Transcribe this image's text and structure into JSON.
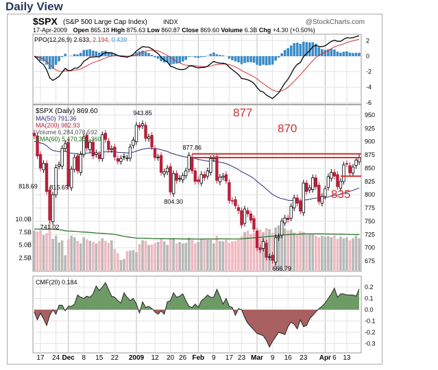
{
  "title": "Daily View",
  "chart_data": {
    "type": "candlestick",
    "symbol": "$SPX",
    "name": "(S&P 500 Large Cap Index)",
    "exchange": "INDX",
    "source": "@StockCharts.com",
    "date": "17-Apr-2009",
    "open_label": "Open",
    "open": "865.18",
    "high_label": "High",
    "high": "875.63",
    "low_label": "Low",
    "low": "860.87",
    "close_label": "Close",
    "close": "869.60",
    "volume_label": "Volume",
    "volume": "6.3B",
    "chg_label": "Chg",
    "chg": "+4.30 (+0.50%)",
    "ppo_legend": "PPO(12,26,9) 2.633,",
    "ppo_signal": "2.194,",
    "ppo_hist": "0.439",
    "price_legend": "$SPX (Daily) 869.60",
    "ma50_legend": "MA(50) 791.36",
    "ma200_legend": "MA(200) 982.93",
    "vol_legend": "Volume 6,284,078,592",
    "ema_legend": "EMA(60) 5,470,351,360",
    "cmf_legend": "CMF(20) 0.184",
    "ppo_ticks": [
      "2",
      "0",
      "-2",
      "-4",
      "-6"
    ],
    "price_ticks": [
      "950",
      "925",
      "900",
      "875",
      "850",
      "825",
      "800",
      "775",
      "750",
      "725",
      "700",
      "675"
    ],
    "volume_ticks": [
      "10.0B",
      "7.5B",
      "5.0B",
      "2.5B"
    ],
    "cmf_ticks": [
      "0.2",
      "0.1",
      "0.0",
      "-0.1",
      "-0.2",
      "-0.3"
    ],
    "x_labels": [
      {
        "t": "17",
        "i": 2,
        "b": 0
      },
      {
        "t": "24",
        "i": 7,
        "b": 0
      },
      {
        "t": "Dec",
        "i": 11,
        "b": 1
      },
      {
        "t": "8",
        "i": 16,
        "b": 0
      },
      {
        "t": "15",
        "i": 21,
        "b": 0
      },
      {
        "t": "22",
        "i": 26,
        "b": 0
      },
      {
        "t": "2009",
        "i": 33,
        "b": 1
      },
      {
        "t": "12",
        "i": 39,
        "b": 0
      },
      {
        "t": "20",
        "i": 44,
        "b": 0
      },
      {
        "t": "26",
        "i": 48,
        "b": 0
      },
      {
        "t": "Feb",
        "i": 53,
        "b": 1
      },
      {
        "t": "9",
        "i": 58,
        "b": 0
      },
      {
        "t": "17",
        "i": 63,
        "b": 0
      },
      {
        "t": "23",
        "i": 67,
        "b": 0
      },
      {
        "t": "Mar",
        "i": 72,
        "b": 1
      },
      {
        "t": "9",
        "i": 77,
        "b": 0
      },
      {
        "t": "16",
        "i": 82,
        "b": 0
      },
      {
        "t": "23",
        "i": 87,
        "b": 0
      },
      {
        "t": "Apr",
        "i": 94,
        "b": 1
      },
      {
        "t": "6",
        "i": 97,
        "b": 0
      },
      {
        "t": "13",
        "i": 101,
        "b": 0
      }
    ],
    "price_annotations": [
      {
        "t": "943.85",
        "i": 35,
        "p": 950
      },
      {
        "t": "877.86",
        "i": 51,
        "p": 885
      },
      {
        "t": "804.30",
        "i": 45,
        "p": 783
      },
      {
        "t": "818.69",
        "i": -2,
        "p": 812
      },
      {
        "t": "815.69",
        "i": 8,
        "p": 810
      },
      {
        "t": "741.02",
        "i": 5,
        "p": 735
      },
      {
        "t": "666.79",
        "i": 80,
        "p": 657
      }
    ],
    "levels": [
      {
        "t": "877",
        "v": 877,
        "from": 51
      },
      {
        "t": "870",
        "v": 870,
        "from": 51
      },
      {
        "t": "835",
        "v": 835,
        "from": 99
      }
    ],
    "closes": [
      911,
      873,
      850,
      859,
      806,
      752,
      800,
      851,
      857,
      887,
      896,
      816,
      848,
      870,
      845,
      876,
      909,
      888,
      899,
      873,
      879,
      868,
      913,
      904,
      885,
      887,
      871,
      863,
      868,
      872,
      869,
      890,
      903,
      931,
      927,
      934,
      906,
      909,
      890,
      870,
      871,
      842,
      843,
      850,
      805,
      840,
      827,
      831,
      836,
      845,
      874,
      845,
      825,
      825,
      838,
      832,
      845,
      868,
      869,
      827,
      833,
      835,
      826,
      789,
      788,
      779,
      770,
      743,
      773,
      764,
      752,
      735,
      700,
      696,
      712,
      682,
      683,
      676,
      719,
      721,
      750,
      756,
      753,
      778,
      794,
      784,
      769,
      822,
      806,
      813,
      832,
      815,
      787,
      797,
      811,
      834,
      842,
      835,
      815,
      825,
      856,
      858,
      841,
      852,
      865,
      869.6
    ],
    "volume_b": [
      7.8,
      7.6,
      7.9,
      6.9,
      7.3,
      9.7,
      6.2,
      6.8,
      5.5,
      5.9,
      3.0,
      6.1,
      6.8,
      6.5,
      5.8,
      5.3,
      6.5,
      6.1,
      5.8,
      5.6,
      5.3,
      5.8,
      6.3,
      5.8,
      5.4,
      5.9,
      4.2,
      3.4,
      2.1,
      2.3,
      3.8,
      3.9,
      4.0,
      3.6,
      5.2,
      5.9,
      5.8,
      5.0,
      5.1,
      5.4,
      5.6,
      6.3,
      5.7,
      5.0,
      6.2,
      6.3,
      5.3,
      5.6,
      5.3,
      5.4,
      6.4,
      6.0,
      5.3,
      5.6,
      6.2,
      6.1,
      6.0,
      6.0,
      5.3,
      6.8,
      5.8,
      5.7,
      6.0,
      5.4,
      5.7,
      5.8,
      6.0,
      6.7,
      7.5,
      7.8,
      7.1,
      7.3,
      7.8,
      8.0,
      7.5,
      8.3,
      8.1,
      7.4,
      8.4,
      8.8,
      9.0,
      8.2,
      7.8,
      8.0,
      7.4,
      7.2,
      7.7,
      7.5,
      7.0,
      7.2,
      7.1,
      6.8,
      6.5,
      6.8,
      6.6,
      6.7,
      6.5,
      6.9,
      6.2,
      6.6,
      6.3,
      6.5,
      5.9,
      6.3,
      6.8,
      6.3
    ],
    "cmf": [
      -0.02,
      -0.09,
      -0.03,
      -0.08,
      -0.14,
      -0.05,
      0.0,
      -0.04,
      0.04,
      0.04,
      -0.01,
      0.03,
      0.03,
      0.05,
      0.13,
      0.11,
      0.1,
      0.12,
      0.11,
      0.14,
      0.21,
      0.17,
      0.2,
      0.24,
      0.18,
      0.12,
      0.11,
      0.08,
      0.06,
      0.15,
      0.11,
      0.08,
      0.1,
      0.05,
      -0.03,
      0.07,
      0.02,
      0.03,
      0.01,
      -0.02,
      -0.04,
      -0.01,
      -0.04,
      0.07,
      0.08,
      0.15,
      0.11,
      0.12,
      0.14,
      0.08,
      0.03,
      0.02,
      0.05,
      0.02,
      0.08,
      0.1,
      0.13,
      0.11,
      0.11,
      0.18,
      0.12,
      0.05,
      0.1,
      0.03,
      0.02,
      -0.05,
      0.01,
      0.0,
      -0.07,
      -0.12,
      -0.15,
      -0.18,
      -0.21,
      -0.22,
      -0.23,
      -0.27,
      -0.33,
      -0.28,
      -0.24,
      -0.2,
      -0.21,
      -0.22,
      -0.15,
      -0.11,
      -0.13,
      -0.17,
      -0.09,
      -0.15,
      -0.14,
      -0.08,
      -0.05,
      -0.02,
      0.01,
      0.03,
      0.06,
      0.1,
      0.14,
      0.19,
      0.11,
      0.14,
      0.14,
      0.13,
      0.13,
      0.13,
      0.12,
      0.184
    ],
    "colors": {
      "up": "#000000",
      "down": "#b8203c",
      "ma50": "#2a2a7a",
      "ema": "#1a6a1a",
      "ppo_hist": "#3a8cc8",
      "signal": "#d03030",
      "cmf_pos": "#6e9a66",
      "cmf_neg": "#a86060",
      "vol_up": "#b8b8b8",
      "vol_down": "#f0b8c0",
      "level": "#d03030"
    }
  }
}
